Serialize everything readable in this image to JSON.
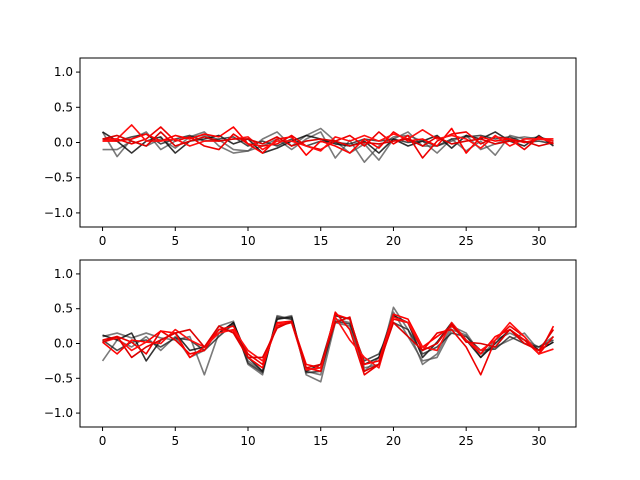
{
  "chart_data": [
    {
      "type": "line",
      "xlim": [
        -1.55,
        32.55
      ],
      "ylim": [
        -1.2,
        1.2
      ],
      "xticks": [
        0,
        5,
        10,
        15,
        20,
        25,
        30
      ],
      "yticks": [
        -1.0,
        -0.5,
        0.0,
        0.5,
        1.0
      ],
      "xtick_labels": [
        "0",
        "5",
        "10",
        "15",
        "20",
        "25",
        "30"
      ],
      "ytick_labels": [
        "−1.0",
        "−0.5",
        "0.0",
        "0.5",
        "1.0"
      ],
      "grid": false,
      "series": [
        {
          "color": "#4d4d4d",
          "alpha": 0.75,
          "values": [
            -0.1,
            -0.1,
            0.02,
            -0.05,
            0.05,
            -0.08,
            0.08,
            0.1,
            0.04,
            -0.1,
            -0.12,
            -0.05,
            0.05,
            -0.1,
            0.05,
            0.15,
            -0.22,
            0.03,
            -0.28,
            -0.05,
            0.08,
            0.1,
            0.02,
            -0.15,
            0.05,
            -0.12,
            0.02,
            -0.18,
            0.1,
            0.05,
            0.08,
            0.02
          ]
        },
        {
          "color": "#4d4d4d",
          "alpha": 0.75,
          "values": [
            0.15,
            -0.2,
            0.05,
            0.15,
            -0.1,
            0.02,
            0.08,
            0.15,
            -0.05,
            -0.15,
            -0.12,
            0.05,
            0.15,
            -0.05,
            0.1,
            0.2,
            0.02,
            -0.15,
            -0.02,
            -0.25,
            0.05,
            0.15,
            -0.05,
            -0.05,
            0.02,
            0.1,
            -0.1,
            -0.02,
            0.05,
            0.08,
            0.05,
            0.02
          ]
        },
        {
          "color": "#000000",
          "alpha": 0.8,
          "values": [
            0.15,
            0.02,
            -0.15,
            0.02,
            0.08,
            -0.15,
            0.02,
            0.05,
            0.1,
            -0.02,
            0.05,
            -0.15,
            -0.08,
            0.02,
            0.1,
            0.05,
            -0.02,
            -0.05,
            0.02,
            -0.15,
            0.05,
            -0.05,
            0.02,
            0.1,
            -0.08,
            0.1,
            0.05,
            0.15,
            0.02,
            -0.05,
            0.1,
            -0.05
          ]
        },
        {
          "color": "#222222",
          "alpha": 0.8,
          "values": [
            0.05,
            0.02,
            0.08,
            0.12,
            -0.02,
            0.05,
            0.1,
            0.02,
            0.05,
            0.08,
            -0.05,
            0.02,
            -0.05,
            0.05,
            -0.05,
            0.02,
            0.0,
            -0.02,
            0.05,
            0.02,
            0.05,
            0.0,
            0.02,
            -0.05,
            0.05,
            0.08,
            0.1,
            0.05,
            0.08,
            0.0,
            0.02,
            -0.02
          ]
        },
        {
          "color": "#ee0000",
          "alpha": 1.0,
          "values": [
            0.05,
            0.05,
            -0.02,
            0.05,
            0.22,
            0.02,
            0.08,
            -0.05,
            -0.1,
            0.12,
            -0.02,
            -0.05,
            -0.02,
            0.1,
            -0.05,
            -0.1,
            0.02,
            0.1,
            -0.05,
            0.15,
            -0.02,
            0.1,
            -0.22,
            0.02,
            0.12,
            0.15,
            -0.02,
            0.08,
            0.05,
            -0.1,
            0.08,
            -0.02
          ]
        },
        {
          "color": "#ff0000",
          "alpha": 1.0,
          "values": [
            0.02,
            0.02,
            0.05,
            0.12,
            0.02,
            0.1,
            0.05,
            0.12,
            0.08,
            0.22,
            -0.02,
            -0.15,
            0.05,
            0.08,
            -0.18,
            0.02,
            -0.05,
            -0.15,
            0.05,
            -0.08,
            0.15,
            0.02,
            0.05,
            -0.05,
            0.2,
            -0.15,
            0.08,
            0.02,
            0.05,
            0.0,
            0.05,
            0.05
          ]
        },
        {
          "color": "#ff1010",
          "alpha": 1.0,
          "values": [
            0.02,
            0.05,
            0.25,
            0.02,
            0.02,
            0.05,
            -0.05,
            0.02,
            0.02,
            0.05,
            0.08,
            -0.1,
            0.02,
            0.02,
            -0.05,
            -0.12,
            0.08,
            0.02,
            0.1,
            0.02,
            0.12,
            0.05,
            0.18,
            0.05,
            0.1,
            0.05,
            -0.08,
            0.1,
            -0.05,
            0.05,
            0.05,
            0.02
          ]
        },
        {
          "color": "#dd0000",
          "alpha": 1.0,
          "values": [
            0.05,
            0.1,
            0.02,
            -0.05,
            0.15,
            -0.05,
            0.02,
            0.08,
            0.02,
            0.05,
            0.05,
            -0.02,
            0.08,
            -0.05,
            0.02,
            0.05,
            0.02,
            -0.05,
            0.0,
            -0.02,
            0.02,
            0.05,
            -0.05,
            0.08,
            -0.02,
            0.02,
            0.05,
            -0.02,
            0.02,
            0.02,
            -0.05,
            0.0
          ]
        }
      ]
    },
    {
      "type": "line",
      "xlim": [
        -1.55,
        32.55
      ],
      "ylim": [
        -1.2,
        1.2
      ],
      "xticks": [
        0,
        5,
        10,
        15,
        20,
        25,
        30
      ],
      "yticks": [
        -1.0,
        -0.5,
        0.0,
        0.5,
        1.0
      ],
      "xtick_labels": [
        "0",
        "5",
        "10",
        "15",
        "20",
        "25",
        "30"
      ],
      "ytick_labels": [
        "−1.0",
        "−0.5",
        "0.0",
        "0.5",
        "1.0"
      ],
      "grid": false,
      "series": [
        {
          "color": "#4d4d4d",
          "alpha": 0.75,
          "values": [
            0.1,
            0.15,
            0.08,
            0.15,
            0.08,
            0.05,
            0.1,
            -0.45,
            0.15,
            0.3,
            -0.25,
            -0.4,
            0.35,
            0.4,
            -0.45,
            -0.55,
            0.3,
            0.25,
            -0.35,
            -0.3,
            0.52,
            0.2,
            -0.3,
            -0.15,
            0.25,
            0.15,
            -0.15,
            -0.05,
            0.05,
            0.15,
            -0.1,
            0.02
          ]
        },
        {
          "color": "#4d4d4d",
          "alpha": 0.75,
          "values": [
            -0.25,
            0.05,
            -0.05,
            0.1,
            -0.1,
            0.1,
            -0.2,
            -0.1,
            0.25,
            0.32,
            -0.3,
            -0.45,
            0.4,
            0.35,
            -0.4,
            -0.45,
            0.35,
            0.3,
            -0.4,
            -0.2,
            0.45,
            0.1,
            -0.25,
            -0.2,
            0.2,
            0.12,
            -0.2,
            0.05,
            0.15,
            0.05,
            -0.05,
            0.1
          ]
        },
        {
          "color": "#000000",
          "alpha": 0.8,
          "values": [
            0.12,
            0.05,
            0.15,
            -0.25,
            0.05,
            0.15,
            -0.1,
            -0.05,
            0.15,
            0.3,
            -0.2,
            -0.4,
            0.35,
            0.38,
            -0.4,
            -0.3,
            0.4,
            0.35,
            -0.3,
            -0.2,
            0.4,
            0.3,
            -0.2,
            0.02,
            0.3,
            0.05,
            -0.2,
            0.0,
            0.2,
            0.05,
            -0.1,
            0.02
          ]
        },
        {
          "color": "#222222",
          "alpha": 0.8,
          "values": [
            0.05,
            -0.1,
            0.02,
            0.05,
            -0.05,
            0.08,
            0.05,
            -0.1,
            0.1,
            0.28,
            -0.28,
            -0.42,
            0.38,
            0.35,
            -0.42,
            -0.4,
            0.32,
            0.28,
            -0.25,
            -0.15,
            0.3,
            0.2,
            -0.15,
            -0.05,
            0.15,
            0.1,
            -0.1,
            -0.08,
            0.1,
            0.0,
            -0.05,
            0.05
          ]
        },
        {
          "color": "#ee0000",
          "alpha": 1.0,
          "values": [
            0.05,
            0.1,
            0.02,
            -0.15,
            0.18,
            0.05,
            -0.15,
            -0.1,
            0.2,
            0.25,
            -0.15,
            -0.3,
            0.25,
            0.3,
            -0.35,
            -0.4,
            0.45,
            0.2,
            -0.45,
            -0.3,
            0.35,
            0.3,
            -0.1,
            0.15,
            0.2,
            -0.05,
            -0.45,
            0.05,
            0.25,
            0.1,
            -0.15,
            0.1
          ]
        },
        {
          "color": "#ff0000",
          "alpha": 1.0,
          "values": [
            0.02,
            -0.15,
            0.05,
            0.02,
            0.18,
            0.15,
            -0.2,
            -0.05,
            0.2,
            0.18,
            -0.2,
            -0.35,
            0.3,
            0.32,
            -0.3,
            -0.35,
            0.42,
            0.35,
            -0.3,
            -0.25,
            0.42,
            0.35,
            -0.05,
            0.1,
            0.25,
            0.05,
            -0.15,
            0.1,
            0.2,
            0.05,
            -0.15,
            0.25
          ]
        },
        {
          "color": "#ff1010",
          "alpha": 1.0,
          "values": [
            0.02,
            0.08,
            -0.1,
            0.02,
            0.0,
            0.2,
            0.05,
            -0.05,
            0.15,
            0.2,
            -0.1,
            -0.25,
            0.28,
            0.3,
            -0.38,
            -0.35,
            0.38,
            0.05,
            -0.2,
            -0.35,
            0.38,
            0.3,
            -0.05,
            -0.1,
            0.3,
            0.05,
            -0.1,
            0.05,
            0.3,
            0.1,
            -0.15,
            -0.08
          ]
        },
        {
          "color": "#dd0000",
          "alpha": 1.0,
          "values": [
            0.02,
            0.1,
            -0.2,
            -0.05,
            0.05,
            0.15,
            0.2,
            -0.05,
            0.25,
            0.15,
            -0.2,
            -0.2,
            0.22,
            0.32,
            -0.35,
            -0.3,
            0.3,
            0.38,
            -0.4,
            -0.3,
            0.3,
            0.1,
            -0.1,
            0.0,
            0.28,
            0.02,
            0.0,
            -0.05,
            0.2,
            0.0,
            -0.1,
            0.2
          ]
        }
      ]
    }
  ]
}
